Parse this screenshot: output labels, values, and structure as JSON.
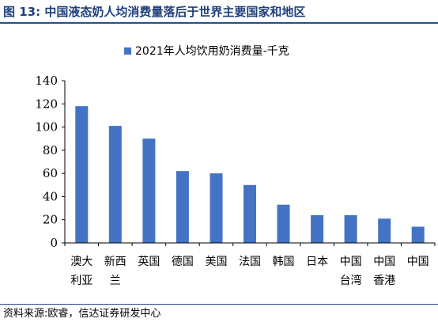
{
  "figure": {
    "title": "图 13: 中国液态奶人均消费量落后于世界主要国家和地区",
    "source": "资料来源:欧睿，信达证券研发中心"
  },
  "colors": {
    "bar": "#4472c4",
    "title": "#1f3f7a",
    "rule": "#2a4f8a",
    "axis": "#000000"
  },
  "chart_data": {
    "type": "bar",
    "categories": [
      [
        "澳大",
        "利亚"
      ],
      [
        "新西",
        "兰"
      ],
      [
        "英国"
      ],
      [
        "德国"
      ],
      [
        "美国"
      ],
      [
        "法国"
      ],
      [
        "韩国"
      ],
      [
        "日本"
      ],
      [
        "中国",
        "台湾"
      ],
      [
        "中国",
        "香港"
      ],
      [
        "中国"
      ]
    ],
    "series": [
      {
        "name": "2021年人均饮用奶消费量-千克",
        "values": [
          118,
          101,
          90,
          62,
          60,
          50,
          33,
          24,
          24,
          21,
          14
        ]
      }
    ],
    "ylim": [
      0,
      140
    ],
    "yticks": [
      0,
      20,
      40,
      60,
      80,
      100,
      120,
      140
    ],
    "grid": false,
    "legend_position": "top-left"
  }
}
